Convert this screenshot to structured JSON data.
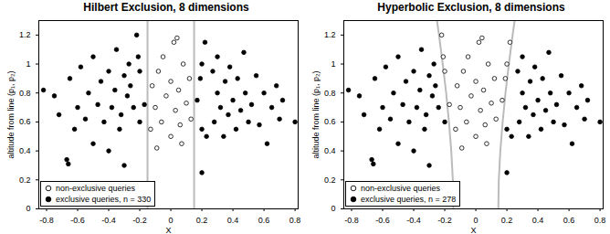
{
  "chart_data": [
    {
      "type": "scatter",
      "title": "Hilbert Exclusion, 8 dimensions",
      "x_label": "X",
      "y_label": "altitude from line (p₁, p₂)",
      "xlim": [
        -0.85,
        0.82
      ],
      "ylim": [
        0,
        1.3
      ],
      "xticks": [
        -0.8,
        -0.6,
        -0.4,
        -0.2,
        0,
        0.2,
        0.4,
        0.6,
        0.8
      ],
      "yticks": [
        0,
        0.2,
        0.4,
        0.6,
        0.8,
        1,
        1.2
      ],
      "legend": "lower left",
      "series": [
        {
          "name": "non-exclusive queries",
          "color": "#000000",
          "marker": "circle_open",
          "x": [
            -0.12,
            -0.1,
            -0.08,
            -0.06,
            -0.05,
            -0.03,
            0,
            0,
            0.02,
            0.03,
            0.05,
            0.07,
            0.08,
            0.1,
            0.12,
            -0.13,
            0.13,
            0.04,
            -0.09,
            0.06
          ],
          "y": [
            0.85,
            0.7,
            0.95,
            0.6,
            1.05,
            0.78,
            0.5,
            0.88,
            1.15,
            0.68,
            0.82,
            0.45,
            1.0,
            0.73,
            0.9,
            0.55,
            0.62,
            1.18,
            0.42,
            0.58
          ]
        },
        {
          "name": "exclusive queries, n = 330",
          "color": "#000000",
          "marker": "circle",
          "x": [
            -0.82,
            -0.75,
            -0.72,
            -0.67,
            -0.66,
            -0.65,
            -0.62,
            -0.6,
            -0.58,
            -0.55,
            -0.53,
            -0.5,
            -0.5,
            -0.47,
            -0.45,
            -0.43,
            -0.4,
            -0.4,
            -0.38,
            -0.36,
            -0.35,
            -0.33,
            -0.32,
            -0.3,
            -0.3,
            -0.28,
            -0.27,
            -0.26,
            0.27,
            0.28,
            0.3,
            0.3,
            0.32,
            0.34,
            0.35,
            0.37,
            0.38,
            0.4,
            0.42,
            0.43,
            0.45,
            0.47,
            0.48,
            0.5,
            0.52,
            0.55,
            0.57,
            0.6,
            0.62,
            0.65,
            0.68,
            0.7,
            0.72,
            0.8,
            0.2,
            -0.2,
            0.2,
            -0.24,
            0.23,
            -0.22,
            -0.2,
            -0.21,
            -0.17,
            0.17,
            0.19,
            0.2,
            0.22
          ],
          "y": [
            0.82,
            0.78,
            0.65,
            0.34,
            0.31,
            0.9,
            0.55,
            0.7,
            0.98,
            0.62,
            0.8,
            0.45,
            1.05,
            0.72,
            0.88,
            0.6,
            0.95,
            0.4,
            0.7,
            0.82,
            1.1,
            0.55,
            0.65,
            0.92,
            0.3,
            0.78,
            1.0,
            0.85,
            0.95,
            0.6,
            0.8,
            1.05,
            0.7,
            0.5,
            0.88,
            0.65,
            0.98,
            0.75,
            0.55,
            0.9,
            0.68,
            1.08,
            0.8,
            0.6,
            0.72,
            0.92,
            0.58,
            0.8,
            0.45,
            0.7,
            0.85,
            0.62,
            0.75,
            0.6,
            0.25,
            0.6,
            0.55,
            0.7,
            0.5,
            1.2,
            0.95,
            1.05,
            0.72,
            0.75,
            0.9,
            1.0,
            1.15
          ]
        }
      ],
      "boundaries": [
        {
          "color": "#bbbbbb",
          "x": [
            -0.15,
            -0.15
          ],
          "y": [
            0,
            1.3
          ]
        },
        {
          "color": "#bbbbbb",
          "x": [
            0.15,
            0.15
          ],
          "y": [
            0,
            1.3
          ]
        }
      ]
    },
    {
      "type": "scatter",
      "title": "Hyperbolic Exclusion, 8 dimensions",
      "x_label": "X",
      "y_label": "altitude from line (p₁, p₂)",
      "xlim": [
        -0.85,
        0.82
      ],
      "ylim": [
        0,
        1.3
      ],
      "xticks": [
        -0.8,
        -0.6,
        -0.4,
        -0.2,
        0,
        0.2,
        0.4,
        0.6,
        0.8
      ],
      "yticks": [
        0,
        0.2,
        0.4,
        0.6,
        0.8,
        1,
        1.2
      ],
      "legend": "lower left",
      "series": [
        {
          "name": "non-exclusive queries",
          "color": "#000000",
          "marker": "circle_open",
          "x": [
            -0.12,
            -0.1,
            -0.08,
            -0.06,
            -0.05,
            -0.03,
            0,
            0,
            0.02,
            0.03,
            0.05,
            0.07,
            0.08,
            0.1,
            0.12,
            -0.13,
            0.13,
            0.04,
            -0.09,
            0.06,
            -0.22,
            -0.2,
            -0.21,
            -0.17,
            0.17,
            0.19,
            0.2,
            0.22
          ],
          "y": [
            0.85,
            0.7,
            0.95,
            0.6,
            1.05,
            0.78,
            0.5,
            0.88,
            1.15,
            0.68,
            0.82,
            0.45,
            1.0,
            0.73,
            0.9,
            0.55,
            0.62,
            1.18,
            0.42,
            0.58,
            1.2,
            0.95,
            1.05,
            0.72,
            0.75,
            0.9,
            1.0,
            1.15
          ]
        },
        {
          "name": "exclusive queries, n = 278",
          "color": "#000000",
          "marker": "circle",
          "x": [
            -0.82,
            -0.75,
            -0.72,
            -0.67,
            -0.66,
            -0.65,
            -0.62,
            -0.6,
            -0.58,
            -0.55,
            -0.53,
            -0.5,
            -0.5,
            -0.47,
            -0.45,
            -0.43,
            -0.4,
            -0.4,
            -0.38,
            -0.36,
            -0.35,
            -0.33,
            -0.32,
            -0.3,
            -0.3,
            -0.28,
            -0.27,
            -0.26,
            0.27,
            0.28,
            0.3,
            0.3,
            0.32,
            0.34,
            0.35,
            0.37,
            0.38,
            0.4,
            0.42,
            0.43,
            0.45,
            0.47,
            0.48,
            0.5,
            0.52,
            0.55,
            0.57,
            0.6,
            0.62,
            0.65,
            0.68,
            0.7,
            0.72,
            0.8,
            0.2,
            -0.2,
            0.2,
            -0.24,
            0.23
          ],
          "y": [
            0.82,
            0.78,
            0.65,
            0.34,
            0.31,
            0.9,
            0.55,
            0.7,
            0.98,
            0.62,
            0.8,
            0.45,
            1.05,
            0.72,
            0.88,
            0.6,
            0.95,
            0.4,
            0.7,
            0.82,
            1.1,
            0.55,
            0.65,
            0.92,
            0.3,
            0.78,
            1.0,
            0.85,
            0.95,
            0.6,
            0.8,
            1.05,
            0.7,
            0.5,
            0.88,
            0.65,
            0.98,
            0.75,
            0.55,
            0.9,
            0.68,
            1.08,
            0.8,
            0.6,
            0.72,
            0.92,
            0.58,
            0.8,
            0.45,
            0.7,
            0.85,
            0.62,
            0.75,
            0.6,
            0.25,
            0.6,
            0.55,
            0.7,
            0.5
          ]
        }
      ],
      "boundaries": [
        {
          "color": "#bbbbbb",
          "x": [
            -0.145,
            -0.148,
            -0.158,
            -0.173,
            -0.191,
            -0.213,
            -0.237,
            -0.25
          ],
          "y": [
            0,
            0.2,
            0.4,
            0.6,
            0.8,
            1.0,
            1.2,
            1.3
          ]
        },
        {
          "color": "#bbbbbb",
          "x": [
            0.145,
            0.148,
            0.158,
            0.173,
            0.191,
            0.213,
            0.237,
            0.25
          ],
          "y": [
            0,
            0.2,
            0.4,
            0.6,
            0.8,
            1.0,
            1.2,
            1.3
          ]
        }
      ]
    }
  ]
}
